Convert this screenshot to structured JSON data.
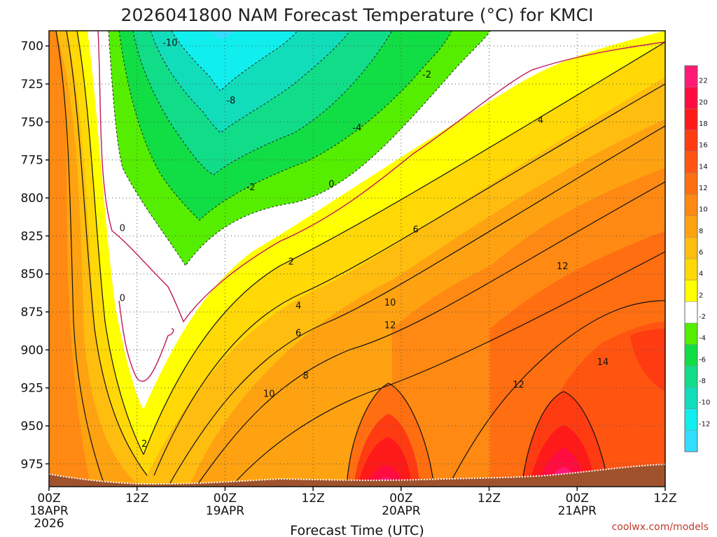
{
  "chart_data": {
    "type": "heatmap",
    "title": "2026041800 NAM Forecast Temperature (°C) for KMCI",
    "xlabel": "Forecast Time (UTC)",
    "ylabel": "",
    "credit": "coolwx.com/models",
    "x_ticks": [
      {
        "hours": 0,
        "label": "00Z",
        "sublabel": "18APR",
        "sublabel2": "2026"
      },
      {
        "hours": 12,
        "label": "12Z",
        "sublabel": "",
        "sublabel2": ""
      },
      {
        "hours": 24,
        "label": "00Z",
        "sublabel": "19APR",
        "sublabel2": ""
      },
      {
        "hours": 36,
        "label": "12Z",
        "sublabel": "",
        "sublabel2": ""
      },
      {
        "hours": 48,
        "label": "00Z",
        "sublabel": "20APR",
        "sublabel2": ""
      },
      {
        "hours": 60,
        "label": "12Z",
        "sublabel": "",
        "sublabel2": ""
      },
      {
        "hours": 72,
        "label": "00Z",
        "sublabel": "21APR",
        "sublabel2": ""
      },
      {
        "hours": 84,
        "label": "12Z",
        "sublabel": "",
        "sublabel2": ""
      }
    ],
    "xlim": [
      0,
      84
    ],
    "y_ticks": [
      700,
      725,
      750,
      775,
      800,
      825,
      850,
      875,
      900,
      925,
      950,
      975
    ],
    "ylim": [
      690,
      990
    ],
    "y_unit": "hPa",
    "grid": true,
    "colorbar": {
      "labels": [
        22,
        20,
        18,
        16,
        14,
        12,
        10,
        8,
        6,
        4,
        2,
        -2,
        -4,
        -6,
        -8,
        -10,
        -12
      ],
      "colors": [
        "#ff1a75",
        "#ff0d40",
        "#ff1a1a",
        "#ff3b12",
        "#ff5511",
        "#ff6e11",
        "#ff8912",
        "#ffa211",
        "#ffbd10",
        "#ffd806",
        "#ffff00",
        "#ffffff",
        "#55ee00",
        "#11dd44",
        "#11dd88",
        "#11ddbb",
        "#11eeee",
        "#33ddff"
      ]
    },
    "contour_labels": [
      {
        "hours": 16.5,
        "hPa": 698,
        "text": "-10"
      },
      {
        "hours": 24.8,
        "hPa": 736,
        "text": "-8"
      },
      {
        "hours": 42,
        "hPa": 754,
        "text": "-4"
      },
      {
        "hours": 51.5,
        "hPa": 719,
        "text": "-2"
      },
      {
        "hours": 27.5,
        "hPa": 793,
        "text": "-2"
      },
      {
        "hours": 38.5,
        "hPa": 791,
        "text": "0"
      },
      {
        "hours": 10,
        "hPa": 820,
        "text": "0"
      },
      {
        "hours": 10,
        "hPa": 866,
        "text": "0"
      },
      {
        "hours": 13,
        "hPa": 962,
        "text": "2"
      },
      {
        "hours": 33,
        "hPa": 842,
        "text": "2"
      },
      {
        "hours": 34,
        "hPa": 871,
        "text": "4"
      },
      {
        "hours": 34,
        "hPa": 889,
        "text": "6"
      },
      {
        "hours": 35,
        "hPa": 917,
        "text": "8"
      },
      {
        "hours": 30,
        "hPa": 929,
        "text": "10"
      },
      {
        "hours": 46.5,
        "hPa": 869,
        "text": "10"
      },
      {
        "hours": 46.5,
        "hPa": 884,
        "text": "12"
      },
      {
        "hours": 50,
        "hPa": 821,
        "text": "6"
      },
      {
        "hours": 67,
        "hPa": 749,
        "text": "4"
      },
      {
        "hours": 70,
        "hPa": 845,
        "text": "12"
      },
      {
        "hours": 64,
        "hPa": 923,
        "text": "12"
      },
      {
        "hours": 75.5,
        "hPa": 908,
        "text": "14"
      }
    ]
  }
}
